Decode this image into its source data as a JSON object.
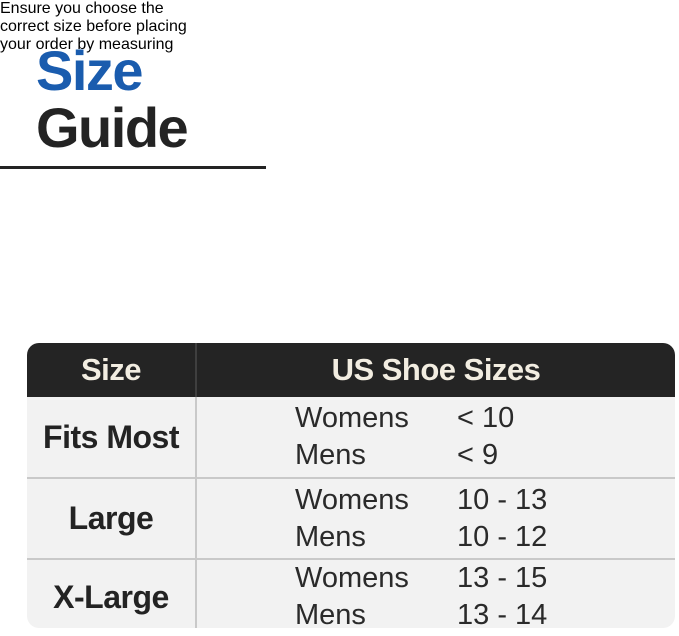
{
  "title": {
    "line1": "Size",
    "line2": "Guide"
  },
  "warning": {
    "lines": [
      "Ensure you choose the",
      "correct size before placing",
      "your order by measuring"
    ]
  },
  "table": {
    "columns": [
      "Size",
      "US Shoe Sizes"
    ],
    "rows": [
      {
        "size": "Fits Most",
        "entries": [
          {
            "group": "Womens",
            "range": "< 10"
          },
          {
            "group": "Mens",
            "range": "< 9"
          }
        ]
      },
      {
        "size": "Large",
        "entries": [
          {
            "group": "Womens",
            "range": "10 - 13"
          },
          {
            "group": "Mens",
            "range": "10 - 12"
          }
        ]
      },
      {
        "size": "X-Large",
        "entries": [
          {
            "group": "Womens",
            "range": "13 - 15"
          },
          {
            "group": "Mens",
            "range": "13 - 14"
          }
        ]
      }
    ]
  },
  "colors": {
    "accent_blue": "#1a5cae",
    "title_dark": "#232323",
    "warning_red": "#d23a3e",
    "header_bg": "#242424",
    "header_text": "#f2ede1",
    "row_bg": "#f2f2f2",
    "divider": "#c9c9c9",
    "body_text": "#2a2a2a"
  }
}
